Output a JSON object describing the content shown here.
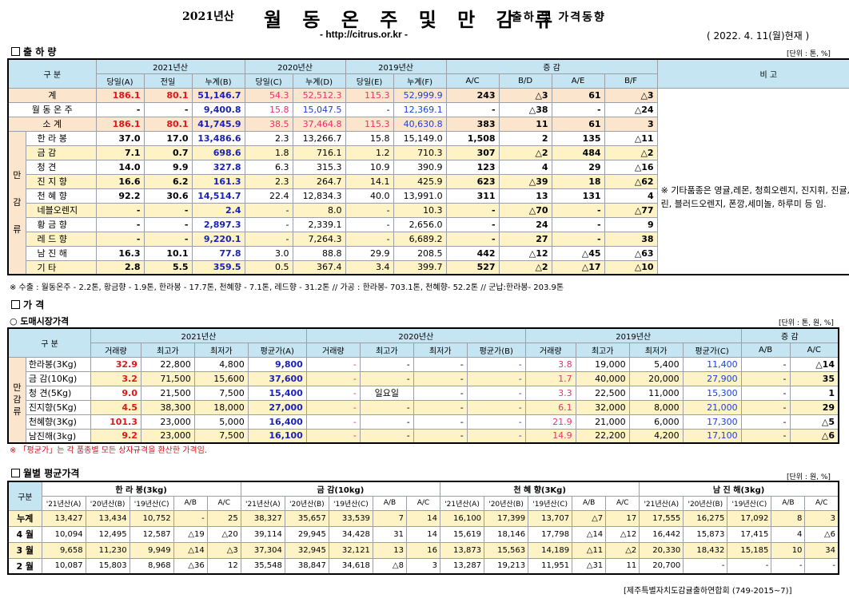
{
  "header": {
    "year": "2021년산",
    "title": "월 동 온 주 및 만 감 류",
    "subtitle": "출하 및 가격동향",
    "url": "- http://citrus.or.kr -",
    "date": "( 2022. 4. 11(월)현재 )"
  },
  "shipment": {
    "section_title": "출 하 량",
    "unit": "[단위 : 톤, %]",
    "col_gubun": "구 분",
    "groups": [
      "2021년산",
      "2020년산",
      "2019년산",
      "증 감"
    ],
    "bigo_label": "비 고",
    "sub_cols": [
      "당일(A)",
      "전일",
      "누계(B)",
      "당일(C)",
      "누계(D)",
      "당일(E)",
      "누계(F)",
      "A/C",
      "B/D",
      "A/E",
      "B/F"
    ],
    "side_label": [
      "만",
      "감",
      "류"
    ],
    "rows": [
      {
        "name": "계",
        "v": [
          "186.1",
          "80.1",
          "51,146.7",
          "54.3",
          "52,512.3",
          "115.3",
          "52,999.9",
          "243",
          "△3",
          "61",
          "△3"
        ]
      },
      {
        "name": "월 동 온 주",
        "v": [
          "-",
          "-",
          "9,400.8",
          "15.8",
          "15,047.5",
          "-",
          "12,369.1",
          "-",
          "△38",
          "-",
          "△24"
        ]
      },
      {
        "name": "소 계",
        "v": [
          "186.1",
          "80.1",
          "41,745.9",
          "38.5",
          "37,464.8",
          "115.3",
          "40,630.8",
          "383",
          "11",
          "61",
          "3"
        ]
      },
      {
        "name": "한 라 봉",
        "v": [
          "37.0",
          "17.0",
          "13,486.6",
          "2.3",
          "13,266.7",
          "15.8",
          "15,149.0",
          "1,508",
          "2",
          "135",
          "△11"
        ]
      },
      {
        "name": "금 감",
        "v": [
          "7.1",
          "0.7",
          "698.6",
          "1.8",
          "716.1",
          "1.2",
          "710.3",
          "307",
          "△2",
          "484",
          "△2"
        ]
      },
      {
        "name": "청 견",
        "v": [
          "14.0",
          "9.9",
          "327.8",
          "6.3",
          "315.3",
          "10.9",
          "390.9",
          "123",
          "4",
          "29",
          "△16"
        ]
      },
      {
        "name": "진 지 향",
        "v": [
          "16.6",
          "6.2",
          "161.3",
          "2.3",
          "264.7",
          "14.1",
          "425.9",
          "623",
          "△39",
          "18",
          "△62"
        ]
      },
      {
        "name": "천 혜 향",
        "v": [
          "92.2",
          "30.6",
          "14,514.7",
          "22.4",
          "12,834.3",
          "40.0",
          "13,991.0",
          "311",
          "13",
          "131",
          "4"
        ]
      },
      {
        "name": "네블오렌지",
        "v": [
          "-",
          "-",
          "2.4",
          "-",
          "8.0",
          "-",
          "10.3",
          "-",
          "△70",
          "-",
          "△77"
        ]
      },
      {
        "name": "황 금 향",
        "v": [
          "-",
          "-",
          "2,897.3",
          "-",
          "2,339.1",
          "-",
          "2,656.0",
          "-",
          "24",
          "-",
          "9"
        ]
      },
      {
        "name": "레 드 향",
        "v": [
          "-",
          "-",
          "9,220.1",
          "-",
          "7,264.3",
          "-",
          "6,689.2",
          "-",
          "27",
          "-",
          "38"
        ]
      },
      {
        "name": "남 진 해",
        "v": [
          "16.3",
          "10.1",
          "77.8",
          "3.0",
          "88.8",
          "29.9",
          "208.5",
          "442",
          "△12",
          "△45",
          "△63"
        ]
      },
      {
        "name": "기 타",
        "v": [
          "2.8",
          "5.5",
          "359.5",
          "0.5",
          "367.4",
          "3.4",
          "399.7",
          "527",
          "△2",
          "△17",
          "△10"
        ]
      }
    ],
    "remark": "※ 기타품종은 영귤,레몬, 청희오렌지, 진지휘, 진귤, 만다린, 블러드오렌지, 폰깡,세미놀, 하루미 등 임.",
    "footnote": "※ 수출 : 월동온주 - 2.2톤, 황금향 - 1.9톤, 한라봉 - 17.7톤, 천혜향 - 7.1톤, 레드향 - 31.2톤 // 가공 : 한라봉- 703.1톤, 천혜향- 52.2톤 // 군납:한라봉- 203.9톤"
  },
  "price": {
    "section_title": "가 격",
    "wholesale_title": "○ 도매시장가격",
    "unit": "[단위 : 톤, 원, %]",
    "col_gubun": "구 분",
    "groups": [
      "2021년산",
      "2020년산",
      "2019년산",
      "증 감"
    ],
    "sub_cols": [
      "거래량",
      "최고가",
      "최저가",
      "평균가(A)",
      "거래량",
      "최고가",
      "최저가",
      "평균가(B)",
      "거래량",
      "최고가",
      "최저가",
      "평균가(C)",
      "A/B",
      "A/C"
    ],
    "side_label": [
      "만",
      "감",
      "류"
    ],
    "rows": [
      {
        "name": "한라봉(3Kg)",
        "v": [
          "32.9",
          "22,800",
          "4,800",
          "9,800",
          "-",
          "-",
          "-",
          "-",
          "3.8",
          "19,000",
          "5,400",
          "11,400",
          "-",
          "△14"
        ]
      },
      {
        "name": "금 감(10Kg)",
        "v": [
          "3.2",
          "71,500",
          "15,600",
          "37,600",
          "-",
          "-",
          "-",
          "-",
          "1.7",
          "40,000",
          "20,000",
          "27,900",
          "-",
          "35"
        ]
      },
      {
        "name": "청 견(5Kg)",
        "v": [
          "9.0",
          "21,500",
          "7,500",
          "15,400",
          "-",
          "일요일",
          "-",
          "-",
          "3.3",
          "22,500",
          "11,000",
          "15,300",
          "-",
          "1"
        ]
      },
      {
        "name": "진지향(5Kg)",
        "v": [
          "4.5",
          "38,300",
          "18,000",
          "27,000",
          "-",
          "-",
          "-",
          "-",
          "6.1",
          "32,000",
          "8,000",
          "21,000",
          "-",
          "29"
        ]
      },
      {
        "name": "천혜향(3Kg)",
        "v": [
          "101.3",
          "23,000",
          "5,000",
          "16,400",
          "-",
          "-",
          "-",
          "-",
          "21.9",
          "21,000",
          "6,000",
          "17,300",
          "-",
          "△5"
        ]
      },
      {
        "name": "남진해(3kg)",
        "v": [
          "9.2",
          "23,000",
          "7,500",
          "16,100",
          "-",
          "-",
          "-",
          "-",
          "14.9",
          "22,200",
          "4,200",
          "17,100",
          "-",
          "△6"
        ]
      }
    ],
    "note": "※ 「평균가」는 각 품종별 모든 상자규격을 환산한 가격임."
  },
  "monthly": {
    "section_title": "월별 평균가격",
    "unit": "[단위 : 원, %]",
    "col_gubun": "구분",
    "groups": [
      "한 라 봉(3kg)",
      "금 감(10kg)",
      "천 혜 향(3Kg)",
      "남 진 해(3kg)"
    ],
    "sub_cols": [
      "'21년산(A)",
      "'20년산(B)",
      "'19년산(C)",
      "A/B",
      "A/C"
    ],
    "rows": [
      {
        "name": "누계",
        "v": [
          "13,427",
          "13,434",
          "10,752",
          "-",
          "25",
          "38,327",
          "35,657",
          "33,539",
          "7",
          "14",
          "16,100",
          "17,399",
          "13,707",
          "△7",
          "17",
          "17,555",
          "16,275",
          "17,092",
          "8",
          "3"
        ]
      },
      {
        "name": "4 월",
        "v": [
          "10,094",
          "12,495",
          "12,587",
          "△19",
          "△20",
          "39,114",
          "29,945",
          "34,428",
          "31",
          "14",
          "15,619",
          "18,146",
          "17,798",
          "△14",
          "△12",
          "16,442",
          "15,873",
          "17,415",
          "4",
          "△6"
        ]
      },
      {
        "name": "3 월",
        "v": [
          "9,658",
          "11,230",
          "9,949",
          "△14",
          "△3",
          "37,304",
          "32,945",
          "32,121",
          "13",
          "16",
          "13,873",
          "15,563",
          "14,189",
          "△11",
          "△2",
          "20,330",
          "18,432",
          "15,185",
          "10",
          "34"
        ]
      },
      {
        "name": "2 월",
        "v": [
          "10,087",
          "15,803",
          "8,968",
          "△36",
          "12",
          "35,548",
          "38,847",
          "34,618",
          "△8",
          "3",
          "13,287",
          "19,213",
          "11,951",
          "△31",
          "11",
          "20,700",
          "-",
          "-",
          "-",
          "-"
        ]
      }
    ]
  },
  "footer": "[제주특별자치도감귤출하연합회 (749-2015~7)]",
  "colors": {
    "header_bg": "#c5e5f3",
    "total_bg": "#fbe5cd",
    "month_bg": "#fdf3c4",
    "red": "#e0171b",
    "blue": "#1a23b6"
  }
}
